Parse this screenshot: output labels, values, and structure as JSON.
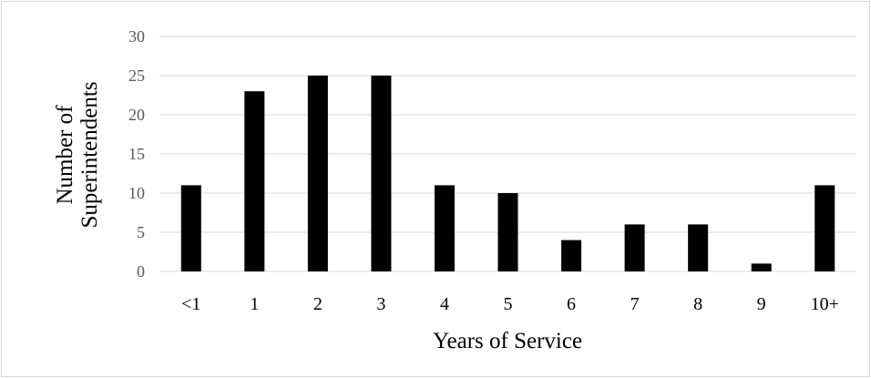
{
  "chart_data": {
    "type": "bar",
    "categories": [
      "<1",
      "1",
      "2",
      "3",
      "4",
      "5",
      "6",
      "7",
      "8",
      "9",
      "10+"
    ],
    "values": [
      11,
      23,
      25,
      25,
      11,
      10,
      4,
      6,
      6,
      1,
      11
    ],
    "title": "",
    "xlabel": "Years of Service",
    "ylabel_lines": [
      "Number of",
      "Superintendents"
    ],
    "ylim": [
      0,
      30
    ],
    "yticks": [
      0,
      5,
      10,
      15,
      20,
      25,
      30
    ],
    "grid": true,
    "bar_color": "#000000",
    "grid_color": "#d9d9d9",
    "legend": "none"
  }
}
